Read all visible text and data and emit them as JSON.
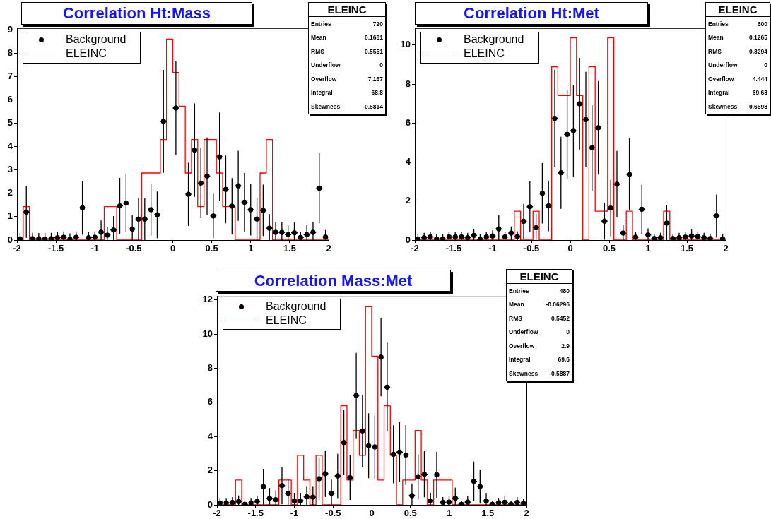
{
  "chart_data": [
    {
      "type": "histogram",
      "title": "Correlation Ht:Mass",
      "legend": "top left",
      "bins": [
        -2,
        -1.92,
        -1.84,
        -1.76,
        -1.68,
        -1.6,
        -1.52,
        -1.44,
        -1.36,
        -1.28,
        -1.2,
        -1.12,
        -1.04,
        -0.96,
        -0.88,
        -0.8,
        -0.72,
        -0.64,
        -0.56,
        -0.48,
        -0.4,
        -0.32,
        -0.24,
        -0.16,
        -0.08,
        0,
        0.08,
        0.16,
        0.24,
        0.32,
        0.4,
        0.48,
        0.56,
        0.64,
        0.72,
        0.8,
        0.88,
        0.96,
        1.04,
        1.12,
        1.2,
        1.28,
        1.36,
        1.44,
        1.52,
        1.6,
        1.68,
        1.76,
        1.84,
        1.92,
        2
      ],
      "series": [
        {
          "name": "Background",
          "type": "scatter",
          "marker": "circle",
          "color": "#000000",
          "x": [
            -1.96,
            -1.88,
            -1.8,
            -1.72,
            -1.64,
            -1.56,
            -1.48,
            -1.4,
            -1.32,
            -1.24,
            -1.16,
            -1.08,
            -1,
            -0.92,
            -0.84,
            -0.76,
            -0.68,
            -0.6,
            -0.52,
            -0.44,
            -0.36,
            -0.28,
            -0.2,
            -0.12,
            -0.04,
            0.04,
            0.12,
            0.2,
            0.28,
            0.36,
            0.44,
            0.52,
            0.6,
            0.68,
            0.76,
            0.84,
            0.92,
            1,
            1.08,
            1.16,
            1.24,
            1.32,
            1.4,
            1.48,
            1.56,
            1.64,
            1.72,
            1.8,
            1.88,
            1.96
          ],
          "values": [
            0.05,
            1.2,
            0.06,
            0.05,
            0.05,
            0.06,
            0.1,
            0.12,
            0.04,
            0.12,
            1.38,
            0.1,
            0.12,
            0.34,
            0.21,
            0.43,
            1.46,
            1.58,
            0.47,
            0.9,
            0.9,
            1.3,
            1.08,
            5.08,
            null,
            5.65,
            null,
            1.96,
            3.85,
            2.44,
            2.74,
            1.03,
            3.56,
            2.17,
            1.45,
            2.32,
            1.62,
            1.3,
            0.9,
            1.27,
            0.51,
            0.33,
            0.33,
            0.23,
            0.31,
            0.11,
            0.23,
            0.33,
            2.22,
            0.13
          ],
          "errors": [
            [
              0,
              0.3
            ],
            1.1,
            [
              0,
              0.31
            ],
            [
              0,
              0.3
            ],
            [
              0,
              0.3
            ],
            [
              0,
              0.31
            ],
            [
              0,
              0.35
            ],
            [
              0,
              0.37
            ],
            [
              0,
              0.29
            ],
            [
              0,
              0.37
            ],
            1.15,
            [
              0,
              0.35
            ],
            [
              0,
              0.37
            ],
            [
              0,
              0.84
            ],
            [
              0,
              0.56
            ],
            [
              0,
              1.03
            ],
            1.2,
            1.25,
            [
              0,
              1.07
            ],
            0.9,
            0.9,
            1.1,
            1.0,
            2.2,
            null,
            2.0,
            null,
            1.35,
            2.0,
            1.5,
            1.65,
            0.95,
            1.9,
            1.45,
            1.2,
            1.5,
            1.25,
            1.1,
            0.9,
            1.1,
            [
              0,
              1.11
            ],
            [
              0,
              0.78
            ],
            [
              0,
              0.78
            ],
            [
              0,
              0.63
            ],
            [
              0,
              0.76
            ],
            [
              0,
              0.36
            ],
            [
              0,
              0.63
            ],
            [
              0,
              0.78
            ],
            1.5,
            [
              0,
              0.43
            ]
          ],
          "xerrors": [
            0.04,
            0.04,
            0.04,
            0.04,
            0.04,
            0.04,
            0.04,
            0.04,
            0.04,
            0.04,
            0.04,
            0.04,
            0.04,
            0.04,
            0.04,
            0.04,
            0.04,
            0.04,
            0.04,
            0.04,
            0.04,
            0.04,
            0.04,
            0.04,
            null,
            0.04,
            null,
            0.04,
            0.04,
            0.04,
            0.04,
            0.04,
            0.04,
            0.04,
            0.04,
            0.04,
            0.04,
            0.04,
            0.04,
            0.04,
            0.04,
            0.04,
            0.04,
            0.04,
            0.04,
            0.04,
            0.04,
            0.04,
            0.04,
            0.04
          ]
        },
        {
          "name": "ELEINC",
          "color": "#ff0000",
          "values": [
            0,
            1.43,
            0,
            0,
            0,
            0,
            0,
            0,
            0,
            0,
            0,
            0,
            0,
            0,
            1.43,
            1.43,
            0,
            0,
            0,
            0,
            2.87,
            2.87,
            2.87,
            4.3,
            8.6,
            7.17,
            5.73,
            2.87,
            4.3,
            1.43,
            4.3,
            4.3,
            2.87,
            1.43,
            1.43,
            0,
            0,
            0,
            0,
            2.87,
            4.3,
            0,
            0,
            0,
            0,
            0,
            0,
            0,
            0,
            0
          ]
        }
      ],
      "xlim": [
        -2,
        2
      ],
      "xticks": [
        -2,
        -1.5,
        -1,
        -0.5,
        0,
        0.5,
        1,
        1.5,
        2
      ],
      "ylim": [
        0,
        9.07
      ],
      "yticks": [
        0,
        1,
        2,
        3,
        4,
        5,
        6,
        7,
        8,
        9
      ],
      "annotations": [
        "ELEINC",
        "Entries",
        "720",
        "Mean",
        "0.1681",
        "RMS",
        "0.5551",
        "Underflow",
        "0",
        "Overflow",
        "7.167",
        "Integral",
        "68.8",
        "Skewness",
        "-0.5814"
      ]
    },
    {
      "type": "histogram",
      "title": "Correlation Ht:Met",
      "legend": "top left",
      "bins": [
        -2,
        -1.92,
        -1.84,
        -1.76,
        -1.68,
        -1.6,
        -1.52,
        -1.44,
        -1.36,
        -1.28,
        -1.2,
        -1.12,
        -1.04,
        -0.96,
        -0.88,
        -0.8,
        -0.72,
        -0.64,
        -0.56,
        -0.48,
        -0.4,
        -0.32,
        -0.24,
        -0.16,
        -0.08,
        0,
        0.08,
        0.16,
        0.24,
        0.32,
        0.4,
        0.48,
        0.56,
        0.64,
        0.72,
        0.8,
        0.88,
        0.96,
        1.04,
        1.12,
        1.2,
        1.28,
        1.36,
        1.44,
        1.52,
        1.6,
        1.68,
        1.76,
        1.84,
        1.92,
        2
      ],
      "series": [
        {
          "name": "Background",
          "type": "scatter",
          "marker": "circle",
          "color": "#000000",
          "x": [
            -1.96,
            -1.88,
            -1.8,
            -1.72,
            -1.64,
            -1.56,
            -1.48,
            -1.4,
            -1.32,
            -1.24,
            -1.16,
            -1.08,
            -1,
            -0.92,
            -0.84,
            -0.76,
            -0.68,
            -0.6,
            -0.52,
            -0.44,
            -0.36,
            -0.28,
            -0.2,
            -0.12,
            -0.04,
            0.04,
            0.12,
            0.2,
            0.28,
            0.36,
            0.44,
            0.52,
            0.6,
            0.68,
            0.76,
            0.84,
            0.92,
            1,
            1.08,
            1.16,
            1.24,
            1.32,
            1.4,
            1.48,
            1.56,
            1.64,
            1.72,
            1.8,
            1.88,
            1.96
          ],
          "values": [
            0.04,
            0.12,
            0.16,
            0.06,
            0.06,
            0.16,
            0.16,
            0.16,
            0.12,
            0.24,
            0.04,
            0.16,
            0.21,
            0.57,
            0.16,
            0.36,
            0.18,
            0.96,
            1.71,
            0.63,
            2.4,
            1.75,
            6.24,
            3.45,
            5.42,
            5.61,
            6.99,
            6.18,
            4.73,
            5.76,
            0.97,
            1.64,
            2.87,
            0.36,
            3.37,
            0.15,
            1.58,
            0.27,
            0.08,
            0.12,
            0.87,
            0.08,
            0.12,
            0.15,
            0.21,
            0.18,
            0.12,
            0.08,
            1.24,
            0.06
          ],
          "errors": [
            [
              0,
              0.29
            ],
            [
              0,
              0.37
            ],
            [
              0,
              0.41
            ],
            [
              0,
              0.31
            ],
            [
              0,
              0.31
            ],
            [
              0,
              0.41
            ],
            [
              0,
              0.41
            ],
            [
              0,
              0.41
            ],
            [
              0,
              0.37
            ],
            [
              0,
              0.55
            ],
            [
              0,
              0.29
            ],
            [
              0,
              0.41
            ],
            [
              0,
              0.5
            ],
            [
              0,
              1.27
            ],
            [
              0,
              0.41
            ],
            [
              0,
              0.7
            ],
            [
              0,
              0.45
            ],
            0.9,
            1.3,
            [
              0,
              1.35
            ],
            1.55,
            1.3,
            2.5,
            1.85,
            2.3,
            2.35,
            2.35,
            2.45,
            2.2,
            2.4,
            0.95,
            1.45,
            1.7,
            [
              0,
              0.8
            ],
            1.85,
            [
              0,
              0.41
            ],
            1.25,
            [
              0,
              0.6
            ],
            [
              0,
              0.3
            ],
            [
              0,
              0.37
            ],
            [
              0,
              1.77
            ],
            [
              0,
              0.3
            ],
            [
              0,
              0.37
            ],
            [
              0,
              0.41
            ],
            [
              0,
              0.55
            ],
            [
              0,
              0.45
            ],
            [
              0,
              0.37
            ],
            [
              0,
              0.3
            ],
            1.1,
            [
              0,
              0.29
            ]
          ],
          "xerrors": [
            0.04,
            0.04,
            0.04,
            0.04,
            0.04,
            0.04,
            0.04,
            0.04,
            0.04,
            0.04,
            0.04,
            0.04,
            0.04,
            0.04,
            0.04,
            0.04,
            0.04,
            0.04,
            0.04,
            0.04,
            0.04,
            0.04,
            0.04,
            0.04,
            0.04,
            0.04,
            0.04,
            0.04,
            0.04,
            0.04,
            0.04,
            0.04,
            0.04,
            0.04,
            0.04,
            0.04,
            0.04,
            0.04,
            0.04,
            0.04,
            0.04,
            0.04,
            0.04,
            0.04,
            0.04,
            0.04,
            0.04,
            0.04,
            0.04,
            0.04
          ]
        },
        {
          "name": "ELEINC",
          "color": "#ff0000",
          "values": [
            0,
            0,
            0,
            0,
            0,
            0,
            0,
            0,
            0,
            0,
            0,
            0,
            0,
            0,
            0,
            0,
            1.48,
            0,
            0,
            1.48,
            0,
            0,
            8.89,
            7.41,
            7.41,
            10.37,
            7.41,
            0,
            8.89,
            1.48,
            1.48,
            10.37,
            0,
            0,
            1.48,
            0,
            0,
            0,
            0,
            0,
            1.48,
            0,
            0,
            0,
            0,
            0,
            0,
            0,
            0,
            0
          ]
        }
      ],
      "xlim": [
        -2,
        2
      ],
      "xticks": [
        -2,
        -1.5,
        -1,
        -0.5,
        0,
        0.5,
        1,
        1.5,
        2
      ],
      "ylim": [
        0,
        10.87
      ],
      "yticks": [
        0,
        2,
        4,
        6,
        8,
        10
      ],
      "annotations": [
        "ELEINC",
        "Entries",
        "600",
        "Mean",
        "0.1265",
        "RMS",
        "0.3294",
        "Underflow",
        "0",
        "Overflow",
        "4.444",
        "Integral",
        "69.63",
        "Skewness",
        "0.6598"
      ]
    },
    {
      "type": "histogram",
      "title": "Correlation Mass:Met",
      "legend": "top left",
      "bins": [
        -2,
        -1.92,
        -1.84,
        -1.76,
        -1.68,
        -1.6,
        -1.52,
        -1.44,
        -1.36,
        -1.28,
        -1.2,
        -1.12,
        -1.04,
        -0.96,
        -0.88,
        -0.8,
        -0.72,
        -0.64,
        -0.56,
        -0.48,
        -0.4,
        -0.32,
        -0.24,
        -0.16,
        -0.08,
        0,
        0.08,
        0.16,
        0.24,
        0.32,
        0.4,
        0.48,
        0.56,
        0.64,
        0.72,
        0.8,
        0.88,
        0.96,
        1.04,
        1.12,
        1.2,
        1.28,
        1.36,
        1.44,
        1.52,
        1.6,
        1.68,
        1.76,
        1.84,
        1.92,
        2
      ],
      "series": [
        {
          "name": "Background",
          "type": "scatter",
          "marker": "circle",
          "color": "#000000",
          "x": [
            -1.96,
            -1.88,
            -1.8,
            -1.72,
            -1.64,
            -1.56,
            -1.48,
            -1.4,
            -1.32,
            -1.24,
            -1.16,
            -1.08,
            -1,
            -0.92,
            -0.84,
            -0.76,
            -0.68,
            -0.6,
            -0.52,
            -0.44,
            -0.36,
            -0.28,
            -0.2,
            -0.12,
            -0.04,
            0.04,
            0.12,
            0.2,
            0.28,
            0.36,
            0.44,
            0.52,
            0.6,
            0.68,
            0.76,
            0.84,
            0.92,
            1,
            1.08,
            1.16,
            1.24,
            1.32,
            1.4,
            1.48,
            1.56,
            1.64,
            1.72,
            1.8,
            1.88,
            1.96
          ],
          "values": [
            0.11,
            0.11,
            0.14,
            0.2,
            0.03,
            0.11,
            0.2,
            1.06,
            0.38,
            0.3,
            1.13,
            0.68,
            0.23,
            0.23,
            0.47,
            0.45,
            1.53,
            1.82,
            0.68,
            1.69,
            3.65,
            1.59,
            6.4,
            4.33,
            3.46,
            3.39,
            8.65,
            6.89,
            2.96,
            3.09,
            2.92,
            0.54,
            1.65,
            1.79,
            0.23,
            1.76,
            0.14,
            0.16,
            0.39,
            0.03,
            0.16,
            1.38,
            1.07,
            0.23,
            0.03,
            0.12,
            0.15,
            0.03,
            0.14,
            0.09
          ],
          "errors": [
            [
              0,
              0.4
            ],
            [
              0,
              0.4
            ],
            [
              0,
              0.45
            ],
            [
              0,
              0.55
            ],
            [
              0,
              0.25
            ],
            [
              0,
              0.4
            ],
            [
              0,
              0.55
            ],
            1.05,
            [
              0,
              0.98
            ],
            [
              0,
              0.85
            ],
            1.1,
            [
              0,
              1.48
            ],
            [
              0,
              0.7
            ],
            [
              0,
              0.7
            ],
            [
              0,
              1.1
            ],
            [
              0,
              1.1
            ],
            1.25,
            1.35,
            [
              0,
              1.48
            ],
            1.3,
            1.9,
            1.3,
            2.5,
            2.1,
            1.9,
            1.85,
            2.3,
            2.6,
            1.7,
            1.75,
            1.75,
            [
              0,
              1.25
            ],
            1.3,
            1.35,
            [
              0,
              0.7
            ],
            1.35,
            [
              0,
              0.45
            ],
            [
              0,
              0.5
            ],
            [
              0,
              1.0
            ],
            [
              0,
              0.25
            ],
            [
              0,
              0.5
            ],
            1.15,
            1.0,
            [
              0,
              0.7
            ],
            [
              0,
              0.25
            ],
            [
              0,
              0.4
            ],
            [
              0,
              0.5
            ],
            [
              0,
              0.25
            ],
            [
              0,
              0.45
            ],
            [
              0,
              0.35
            ]
          ],
          "xerrors": [
            0.04,
            0.04,
            0.04,
            0.04,
            0.04,
            0.04,
            0.04,
            0.04,
            0.04,
            0.04,
            0.04,
            0.04,
            0.04,
            0.04,
            0.04,
            0.04,
            0.04,
            0.04,
            0.04,
            0.04,
            0.04,
            0.04,
            0.04,
            0.04,
            0.04,
            0.04,
            0.04,
            0.04,
            0.04,
            0.04,
            0.04,
            0.04,
            0.04,
            0.04,
            0.04,
            0.04,
            0.04,
            0.04,
            0.04,
            0.04,
            0.04,
            0.04,
            0.04,
            0.04,
            0.04,
            0.04,
            0.04,
            0.04,
            0.04,
            0.04
          ]
        },
        {
          "name": "ELEINC",
          "color": "#ff0000",
          "values": [
            0,
            0,
            0,
            1.45,
            0,
            0,
            0,
            0,
            0,
            0,
            1.45,
            1.45,
            0,
            2.9,
            1.45,
            0,
            2.9,
            0,
            0,
            0,
            5.8,
            1.45,
            4.35,
            2.9,
            11.6,
            8.7,
            1.45,
            5.8,
            2.9,
            0,
            1.45,
            1.45,
            4.35,
            1.45,
            0,
            1.45,
            1.45,
            1.45,
            0,
            0,
            0,
            0,
            0,
            0,
            0,
            0,
            0,
            0,
            0,
            0
          ]
        }
      ],
      "xlim": [
        -2,
        2
      ],
      "xticks": [
        -2,
        -1.5,
        -1,
        -0.5,
        0,
        0.5,
        1,
        1.5,
        2
      ],
      "ylim": [
        0,
        12.2
      ],
      "yticks": [
        0,
        2,
        4,
        6,
        8,
        10,
        12
      ],
      "annotations": [
        "ELEINC",
        "Entries",
        "480",
        "Mean",
        "-0.06296",
        "RMS",
        "0.5452",
        "Underflow",
        "0",
        "Overflow",
        "2.9",
        "Integral",
        "69.6",
        "Skewness",
        "-0.5887"
      ]
    }
  ]
}
